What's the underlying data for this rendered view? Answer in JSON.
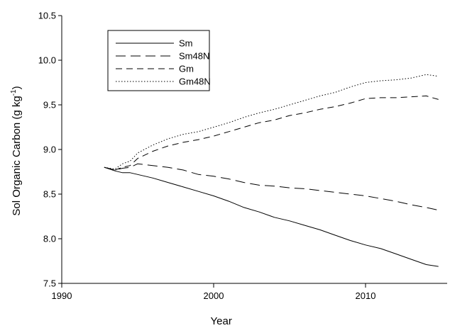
{
  "chart_data": {
    "type": "line",
    "title": "",
    "xlabel": "Year",
    "ylabel": "Sol Organic Carbon (g kg",
    "ylabel_superscript": "-1",
    "ylabel_suffix": ")",
    "xlim": [
      1990,
      2016
    ],
    "ylim": [
      7.5,
      10.5
    ],
    "x_ticks": [
      1990,
      2000,
      2010
    ],
    "y_ticks": [
      "7.5",
      "8.0",
      "8.5",
      "9.0",
      "9.5",
      "10.0",
      "10.5"
    ],
    "grid": false,
    "legend_position": "top-left",
    "series": [
      {
        "name": "Sm",
        "dash": "solid",
        "x": [
          1992.8,
          1993.5,
          1994.0,
          1994.5,
          1995.0,
          1996.0,
          1997.0,
          1998.0,
          1999.0,
          2000.0,
          2001.0,
          2002.0,
          2003.0,
          2004.0,
          2005.0,
          2006.0,
          2007.0,
          2008.0,
          2009.0,
          2010.0,
          2011.0,
          2012.0,
          2013.0,
          2014.0,
          2014.8
        ],
        "y": [
          8.8,
          8.76,
          8.74,
          8.74,
          8.72,
          8.68,
          8.63,
          8.58,
          8.53,
          8.48,
          8.42,
          8.35,
          8.3,
          8.24,
          8.2,
          8.15,
          8.1,
          8.04,
          7.98,
          7.93,
          7.89,
          7.83,
          7.77,
          7.71,
          7.69
        ]
      },
      {
        "name": "Sm48N",
        "dash": "long-dash",
        "x": [
          1992.8,
          1993.5,
          1994.0,
          1994.5,
          1995.0,
          1996.0,
          1997.0,
          1998.0,
          1999.0,
          2000.0,
          2001.0,
          2002.0,
          2003.0,
          2004.0,
          2005.0,
          2006.0,
          2007.0,
          2008.0,
          2009.0,
          2010.0,
          2011.0,
          2012.0,
          2013.0,
          2014.0,
          2014.8
        ],
        "y": [
          8.8,
          8.77,
          8.79,
          8.8,
          8.84,
          8.82,
          8.8,
          8.77,
          8.72,
          8.7,
          8.67,
          8.63,
          8.6,
          8.59,
          8.57,
          8.56,
          8.54,
          8.52,
          8.5,
          8.48,
          8.45,
          8.42,
          8.38,
          8.35,
          8.32
        ]
      },
      {
        "name": "Gm",
        "dash": "dash",
        "x": [
          1992.8,
          1993.5,
          1994.0,
          1994.5,
          1995.0,
          1996.0,
          1997.0,
          1998.0,
          1999.0,
          2000.0,
          2001.0,
          2002.0,
          2003.0,
          2004.0,
          2005.0,
          2006.0,
          2007.0,
          2008.0,
          2009.0,
          2010.0,
          2011.0,
          2012.0,
          2013.0,
          2014.0,
          2014.8
        ],
        "y": [
          8.8,
          8.77,
          8.8,
          8.82,
          8.9,
          8.98,
          9.04,
          9.08,
          9.11,
          9.15,
          9.2,
          9.25,
          9.3,
          9.33,
          9.38,
          9.41,
          9.45,
          9.48,
          9.52,
          9.57,
          9.58,
          9.58,
          9.59,
          9.6,
          9.56
        ]
      },
      {
        "name": "Gm48N",
        "dash": "dotted",
        "x": [
          1992.8,
          1993.5,
          1994.0,
          1994.5,
          1995.0,
          1996.0,
          1997.0,
          1998.0,
          1999.0,
          2000.0,
          2001.0,
          2002.0,
          2003.0,
          2004.0,
          2005.0,
          2006.0,
          2007.0,
          2008.0,
          2009.0,
          2010.0,
          2011.0,
          2012.0,
          2013.0,
          2014.0,
          2014.8
        ],
        "y": [
          8.8,
          8.78,
          8.84,
          8.87,
          8.96,
          9.05,
          9.12,
          9.17,
          9.2,
          9.25,
          9.3,
          9.36,
          9.41,
          9.45,
          9.5,
          9.55,
          9.6,
          9.64,
          9.7,
          9.75,
          9.77,
          9.78,
          9.8,
          9.84,
          9.82
        ]
      }
    ]
  }
}
